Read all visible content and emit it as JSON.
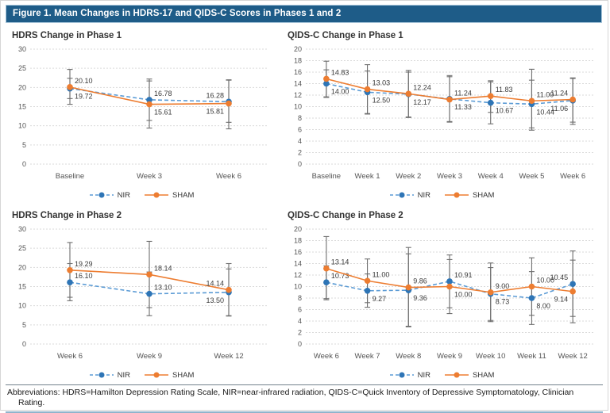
{
  "header": {
    "title": "Figure 1. Mean Changes in HDRS-17 and QIDS-C Scores in Phases 1 and 2"
  },
  "footer": {
    "text": "Abbreviations: HDRS=Hamilton Depression Rating Scale, NIR=near-infrared radiation, QIDS-C=Quick Inventory of Depressive Symptomatology, Clinician Rating."
  },
  "colors": {
    "nir_marker": "#2E75B6",
    "nir_line": "#5B9BD5",
    "sham": "#ED7D31",
    "error_bar": "#6E6E6E",
    "grid": "#D9D9D9",
    "tick_text": "#555555",
    "label_text": "#3A3A3A",
    "header_bg": "#1E5C88",
    "header_border": "#A9C6DB",
    "rule_top": "#72808B",
    "rule_bottom": "#8FB4CC"
  },
  "chart_data": [
    {
      "type": "line",
      "title": "HDRS Change in Phase 1",
      "categories": [
        "Baseline",
        "Week 3",
        "Week 6"
      ],
      "ylim": [
        0,
        30
      ],
      "ytick_step": 5,
      "grid": true,
      "legend_position": "bottom",
      "series": [
        {
          "name": "NIR",
          "style": "dashed",
          "values": [
            19.72,
            16.78,
            16.28
          ],
          "label_pos": [
            "below",
            "above",
            "above"
          ],
          "err_lo": [
            17.1,
            11.4,
            10.9
          ],
          "err_hi": [
            22.4,
            22.2,
            21.9
          ]
        },
        {
          "name": "SHAM",
          "style": "solid",
          "values": [
            20.1,
            15.61,
            15.81
          ],
          "label_pos": [
            "above",
            "below",
            "below"
          ],
          "err_lo": [
            15.6,
            9.4,
            9.2
          ],
          "err_hi": [
            24.7,
            21.7,
            22.0
          ]
        }
      ]
    },
    {
      "type": "line",
      "title": "QIDS-C Change in Phase 1",
      "categories": [
        "Baseline",
        "Week 1",
        "Week 2",
        "Week 3",
        "Week 4",
        "Week 5",
        "Week 6"
      ],
      "ylim": [
        0,
        20
      ],
      "ytick_step": 2,
      "grid": true,
      "legend_position": "bottom",
      "series": [
        {
          "name": "NIR",
          "style": "dashed",
          "values": [
            14.0,
            12.5,
            12.17,
            11.33,
            10.67,
            10.44,
            11.06
          ],
          "label_pos": [
            "below",
            "below",
            "below",
            "below",
            "below",
            "below",
            "below"
          ],
          "err_lo": [
            11.6,
            8.7,
            8.1,
            7.4,
            7.0,
            6.3,
            7.3
          ],
          "err_hi": [
            16.4,
            16.2,
            16.0,
            15.2,
            14.3,
            14.6,
            15.0
          ]
        },
        {
          "name": "SHAM",
          "style": "solid",
          "values": [
            14.83,
            13.03,
            12.24,
            11.24,
            11.83,
            11.0,
            11.24
          ],
          "label_pos": [
            "above",
            "above",
            "above",
            "above",
            "above",
            "above",
            "above"
          ],
          "err_lo": [
            11.7,
            8.8,
            8.2,
            7.3,
            9.0,
            5.9,
            6.9
          ],
          "err_hi": [
            17.9,
            17.3,
            16.3,
            15.4,
            14.5,
            16.5,
            14.9
          ]
        }
      ]
    },
    {
      "type": "line",
      "title": "HDRS Change in Phase 2",
      "categories": [
        "Week 6",
        "Week 9",
        "Week 12"
      ],
      "ylim": [
        0,
        30
      ],
      "ytick_step": 5,
      "grid": true,
      "legend_position": "bottom",
      "series": [
        {
          "name": "NIR",
          "style": "dashed",
          "values": [
            16.1,
            13.1,
            13.5
          ],
          "label_pos": [
            "above",
            "above",
            "below"
          ],
          "err_lo": [
            11.3,
            7.4,
            7.4
          ],
          "err_hi": [
            21.0,
            18.8,
            19.6
          ]
        },
        {
          "name": "SHAM",
          "style": "solid",
          "values": [
            19.29,
            18.14,
            14.14
          ],
          "label_pos": [
            "above",
            "above",
            "above"
          ],
          "err_lo": [
            12.2,
            9.5,
            7.3
          ],
          "err_hi": [
            26.5,
            26.8,
            21.0
          ]
        }
      ]
    },
    {
      "type": "line",
      "title": "QIDS-C Change in Phase 2",
      "categories": [
        "Week 6",
        "Week 7",
        "Week 8",
        "Week 9",
        "Week 10",
        "Week 11",
        "Week 12"
      ],
      "ylim": [
        0,
        20
      ],
      "ytick_step": 2,
      "grid": true,
      "legend_position": "bottom",
      "series": [
        {
          "name": "NIR",
          "style": "dashed",
          "values": [
            10.73,
            9.27,
            9.36,
            10.91,
            8.73,
            8.0,
            10.45
          ],
          "label_pos": [
            "above",
            "below",
            "below",
            "above",
            "below",
            "below",
            "above"
          ],
          "err_lo": [
            7.9,
            6.4,
            3.0,
            6.3,
            4.1,
            3.4,
            4.8
          ],
          "err_hi": [
            13.6,
            12.2,
            15.7,
            15.5,
            13.3,
            12.6,
            16.2
          ]
        },
        {
          "name": "SHAM",
          "style": "solid",
          "values": [
            13.14,
            11.0,
            9.86,
            10.0,
            9.0,
            10.0,
            9.14
          ],
          "label_pos": [
            "above",
            "above",
            "above",
            "below",
            "above",
            "above",
            "below"
          ],
          "err_lo": [
            7.7,
            7.2,
            3.1,
            5.3,
            3.9,
            5.0,
            3.7
          ],
          "err_hi": [
            18.7,
            14.8,
            16.8,
            14.7,
            14.1,
            15.0,
            14.6
          ]
        }
      ]
    }
  ]
}
